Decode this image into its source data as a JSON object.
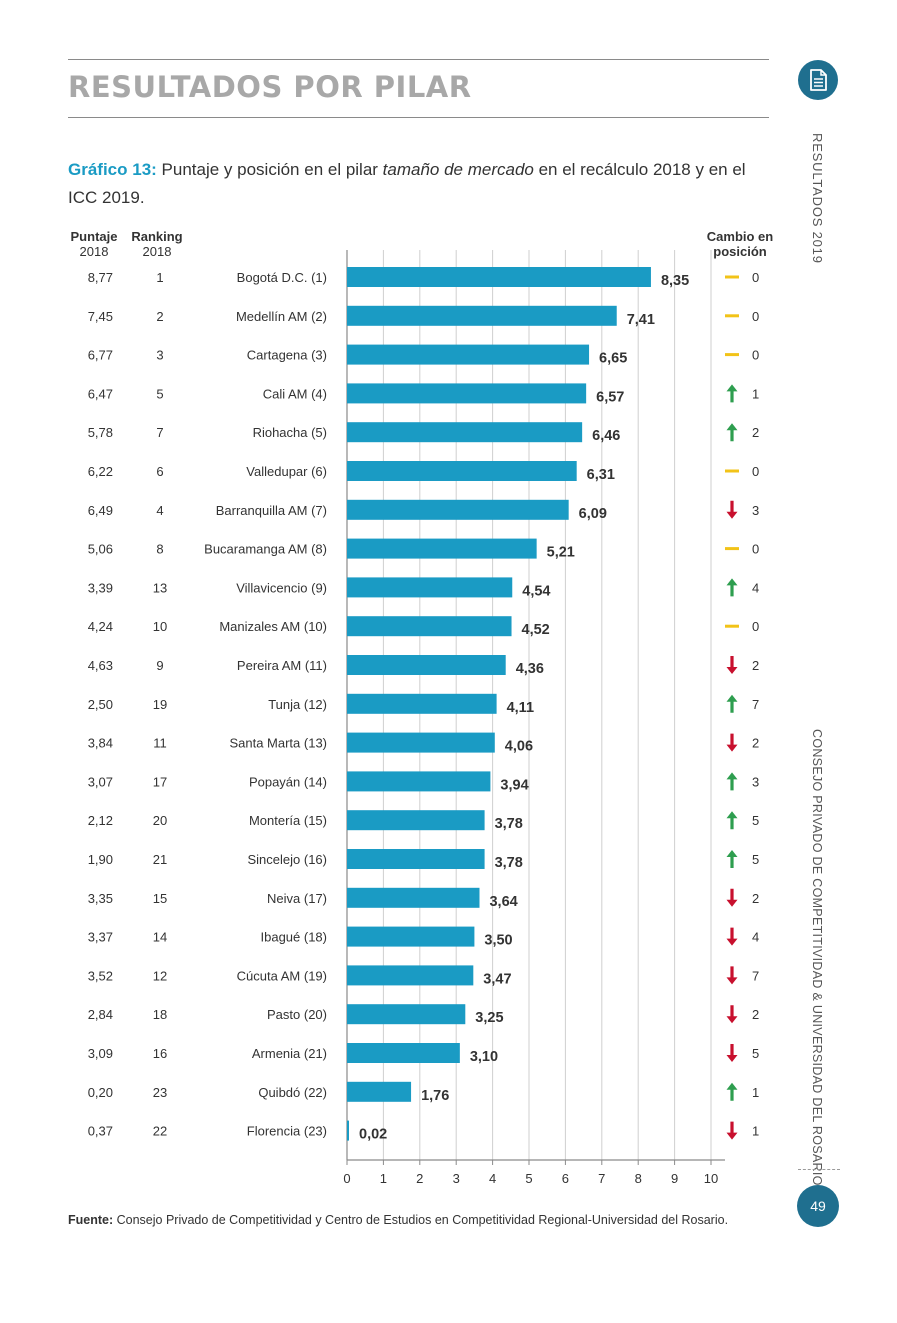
{
  "page": {
    "title": "RESULTADOS POR PILAR",
    "side_top": "RESULTADOS  2019",
    "side_bottom": "CONSEJO PRIVADO DE COMPETITIVIDAD & UNIVERSIDAD DEL ROSARIO",
    "page_number": "49",
    "icon": "document-icon"
  },
  "caption": {
    "lead": "Gráfico 13:",
    "text_before": " Puntaje y posición en el pilar ",
    "emphasis": "tamaño de mercado",
    "text_after": " en el recálculo 2018 y en el ICC 2019."
  },
  "headers": {
    "score_2018": "Puntaje",
    "score_2018_year": "2018",
    "rank_2018": "Ranking",
    "rank_2018_year": "2018",
    "change_line1": "Cambio en",
    "change_line2": "posición"
  },
  "footer": {
    "label": "Fuente:",
    "text": " Consejo Privado de Competitividad y Centro de Estudios en Competitividad Regional-Universidad del Rosario."
  },
  "colors": {
    "bar": "#1a9bc4",
    "up": "#2e9e4f",
    "down": "#c8102e",
    "same": "#f2c318",
    "accent": "#1f6f8f"
  },
  "chart_data": {
    "type": "bar",
    "orientation": "horizontal",
    "categories": [
      "Bogotá D.C. (1)",
      "Medellín AM (2)",
      "Cartagena (3)",
      "Cali AM (4)",
      "Riohacha (5)",
      "Valledupar (6)",
      "Barranquilla AM (7)",
      "Bucaramanga AM (8)",
      "Villavicencio (9)",
      "Manizales AM (10)",
      "Pereira AM (11)",
      "Tunja (12)",
      "Santa Marta (13)",
      "Popayán (14)",
      "Montería (15)",
      "Sincelejo (16)",
      "Neiva (17)",
      "Ibagué (18)",
      "Cúcuta AM (19)",
      "Pasto (20)",
      "Armenia (21)",
      "Quibdó (22)",
      "Florencia (23)"
    ],
    "values": [
      8.35,
      7.41,
      6.65,
      6.57,
      6.46,
      6.31,
      6.09,
      5.21,
      4.54,
      4.52,
      4.36,
      4.11,
      4.06,
      3.94,
      3.78,
      3.78,
      3.64,
      3.5,
      3.47,
      3.25,
      3.1,
      1.76,
      0.02
    ],
    "value_labels": [
      "8,35",
      "7,41",
      "6,65",
      "6,57",
      "6,46",
      "6,31",
      "6,09",
      "5,21",
      "4,54",
      "4,52",
      "4,36",
      "4,11",
      "4,06",
      "3,94",
      "3,78",
      "3,78",
      "3,64",
      "3,50",
      "3,47",
      "3,25",
      "3,10",
      "1,76",
      "0,02"
    ],
    "score_2018": [
      "8,77",
      "7,45",
      "6,77",
      "6,47",
      "5,78",
      "6,22",
      "6,49",
      "5,06",
      "3,39",
      "4,24",
      "4,63",
      "2,50",
      "3,84",
      "3,07",
      "2,12",
      "1,90",
      "3,35",
      "3,37",
      "3,52",
      "2,84",
      "3,09",
      "0,20",
      "0,37"
    ],
    "rank_2018": [
      "1",
      "2",
      "3",
      "5",
      "7",
      "6",
      "4",
      "8",
      "13",
      "10",
      "9",
      "19",
      "11",
      "17",
      "20",
      "21",
      "15",
      "14",
      "12",
      "18",
      "16",
      "23",
      "22"
    ],
    "change_direction": [
      "same",
      "same",
      "same",
      "up",
      "up",
      "same",
      "down",
      "same",
      "up",
      "same",
      "down",
      "up",
      "down",
      "up",
      "up",
      "up",
      "down",
      "down",
      "down",
      "down",
      "down",
      "up",
      "down"
    ],
    "change_amount": [
      "0",
      "0",
      "0",
      "1",
      "2",
      "0",
      "3",
      "0",
      "4",
      "0",
      "2",
      "7",
      "2",
      "3",
      "5",
      "5",
      "2",
      "4",
      "7",
      "2",
      "5",
      "1",
      "1"
    ],
    "xlim": [
      0,
      10
    ],
    "xticks": [
      "0",
      "1",
      "2",
      "3",
      "4",
      "5",
      "6",
      "7",
      "8",
      "9",
      "10"
    ],
    "grid": true
  }
}
